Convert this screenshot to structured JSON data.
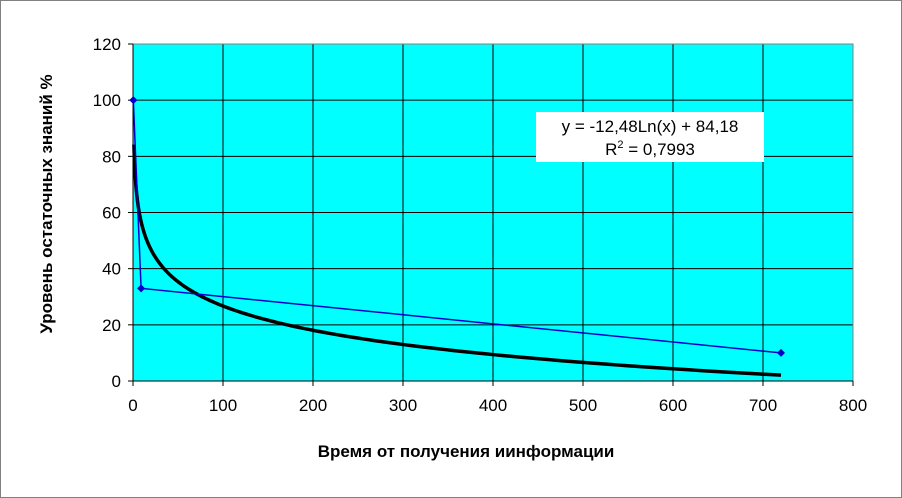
{
  "chart_data": {
    "type": "scatter",
    "xlabel": "Время от получения иинформации",
    "ylabel": "Уровень остаточных знаний %",
    "xlim": [
      0,
      800
    ],
    "ylim": [
      0,
      120
    ],
    "x_ticks": [
      "0",
      "100",
      "200",
      "300",
      "400",
      "500",
      "600",
      "700",
      "800"
    ],
    "y_ticks": [
      "0",
      "20",
      "40",
      "60",
      "80",
      "100",
      "120"
    ],
    "grid": true,
    "plot_background": "#00FFFF",
    "series": [
      {
        "type": "line_markers",
        "color": "#0000CC",
        "x": [
          0.33,
          9,
          720
        ],
        "y": [
          100,
          33,
          10
        ]
      },
      {
        "type": "trendline",
        "color": "#000000",
        "equation": "y = -12,48Ln(x) + 84,18",
        "r2_label": "R",
        "r2_exp": "2",
        "r2_value": " = 0,7993",
        "a": -12.48,
        "b": 84.18,
        "x_range": [
          1,
          720
        ]
      }
    ]
  }
}
